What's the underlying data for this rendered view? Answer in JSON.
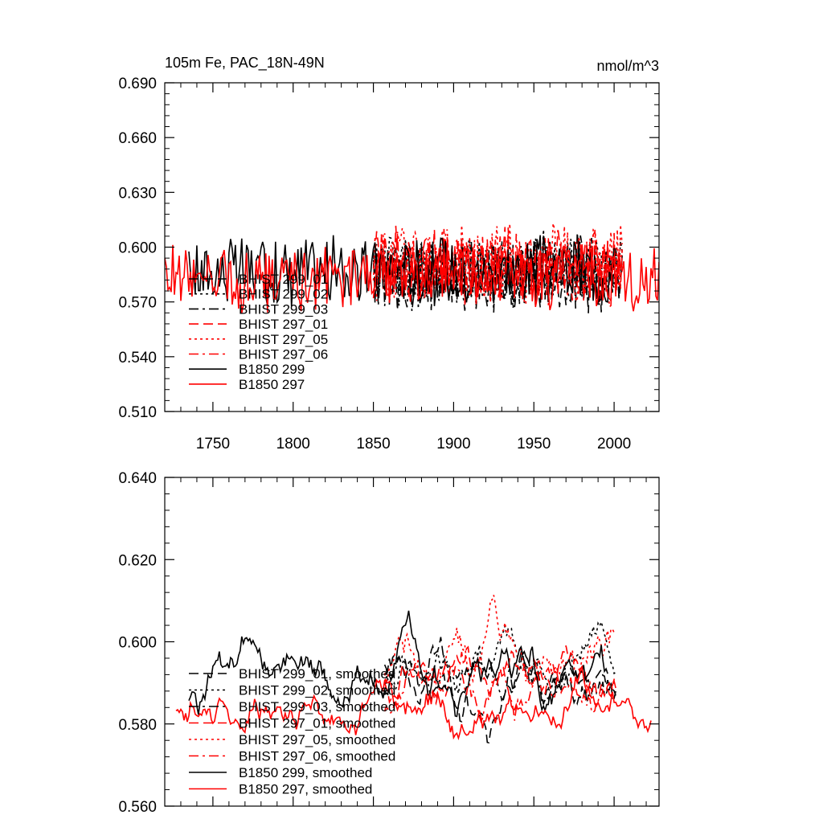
{
  "chart_data": [
    {
      "type": "line",
      "title": "105m Fe, PAC_18N-49N",
      "units": "nmol/m^3",
      "xlim": [
        1720,
        2028
      ],
      "ylim": [
        0.51,
        0.69
      ],
      "yticks": [
        0.51,
        0.54,
        0.57,
        0.6,
        0.63,
        0.66,
        0.69
      ],
      "ytick_labels": [
        "0.510",
        "0.540",
        "0.570",
        "0.600",
        "0.630",
        "0.660",
        "0.690"
      ],
      "xticks": [
        1750,
        1800,
        1850,
        1900,
        1950,
        2000
      ],
      "xtick_labels": [
        "1750",
        "1800",
        "1850",
        "1900",
        "1950",
        "2000"
      ],
      "legend_position": "lower-left",
      "series": [
        {
          "name": "BHIST 299_01",
          "color": "#000000",
          "dash": "dashed",
          "x_start": 1850,
          "x_end": 2005,
          "base": 0.586,
          "amp": 0.018,
          "seed": 11
        },
        {
          "name": "BHIST 299_02",
          "color": "#000000",
          "dash": "dotted",
          "x_start": 1850,
          "x_end": 2005,
          "base": 0.588,
          "amp": 0.018,
          "seed": 12
        },
        {
          "name": "BHIST 299_03",
          "color": "#000000",
          "dash": "dashdot",
          "x_start": 1850,
          "x_end": 2005,
          "base": 0.585,
          "amp": 0.018,
          "seed": 13
        },
        {
          "name": "BHIST 297_01",
          "color": "#ff0000",
          "dash": "dashed",
          "x_start": 1850,
          "x_end": 2005,
          "base": 0.59,
          "amp": 0.018,
          "seed": 14
        },
        {
          "name": "BHIST 297_05",
          "color": "#ff0000",
          "dash": "dotted",
          "x_start": 1850,
          "x_end": 2005,
          "base": 0.592,
          "amp": 0.02,
          "seed": 15
        },
        {
          "name": "BHIST 297_06",
          "color": "#ff0000",
          "dash": "dashdot",
          "x_start": 1850,
          "x_end": 2005,
          "base": 0.589,
          "amp": 0.018,
          "seed": 16
        },
        {
          "name": "B1850 299",
          "color": "#000000",
          "dash": "solid",
          "x_start": 1735,
          "x_end": 2000,
          "base": 0.587,
          "amp": 0.017,
          "seed": 17
        },
        {
          "name": "B1850 297",
          "color": "#ff0000",
          "dash": "solid",
          "x_start": 1720,
          "x_end": 2028,
          "base": 0.583,
          "amp": 0.016,
          "seed": 18
        }
      ]
    },
    {
      "type": "line",
      "ylim": [
        0.56,
        0.64
      ],
      "xlim": [
        1720,
        2028
      ],
      "yticks": [
        0.56,
        0.58,
        0.6,
        0.62,
        0.64
      ],
      "ytick_labels": [
        "0.560",
        "0.580",
        "0.600",
        "0.620",
        "0.640"
      ],
      "xticks": [
        1750,
        1800,
        1850,
        1900,
        1950,
        2000
      ],
      "legend_position": "lower-left",
      "series": [
        {
          "name": "BHIST 299_01, smoothed",
          "color": "#000000",
          "dash": "dashed",
          "x_start": 1857,
          "x_end": 2001,
          "base": 0.59,
          "amp": 0.012,
          "seed": 21
        },
        {
          "name": "BHIST 299_02, smoothed",
          "color": "#000000",
          "dash": "dotted",
          "x_start": 1857,
          "x_end": 2001,
          "base": 0.595,
          "amp": 0.011,
          "seed": 22
        },
        {
          "name": "BHIST 299_03, smoothed",
          "color": "#000000",
          "dash": "dashdot",
          "x_start": 1857,
          "x_end": 2001,
          "base": 0.59,
          "amp": 0.011,
          "seed": 23
        },
        {
          "name": "BHIST 297_01, smoothed",
          "color": "#ff0000",
          "dash": "dashed",
          "x_start": 1857,
          "x_end": 2001,
          "base": 0.592,
          "amp": 0.011,
          "seed": 24
        },
        {
          "name": "BHIST 297_05, smoothed",
          "color": "#ff0000",
          "dash": "dotted",
          "x_start": 1857,
          "x_end": 2001,
          "base": 0.598,
          "amp": 0.014,
          "seed": 25
        },
        {
          "name": "BHIST 297_06, smoothed",
          "color": "#ff0000",
          "dash": "dashdot",
          "x_start": 1857,
          "x_end": 2001,
          "base": 0.59,
          "amp": 0.011,
          "seed": 26
        },
        {
          "name": "B1850 299, smoothed",
          "color": "#000000",
          "dash": "solid",
          "x_start": 1735,
          "x_end": 1996,
          "base": 0.592,
          "amp": 0.012,
          "seed": 27
        },
        {
          "name": "B1850 297, smoothed",
          "color": "#ff0000",
          "dash": "solid",
          "x_start": 1727,
          "x_end": 2023,
          "base": 0.584,
          "amp": 0.01,
          "seed": 28
        }
      ]
    }
  ]
}
